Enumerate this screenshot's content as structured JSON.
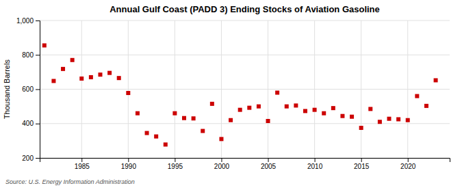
{
  "chart_data": {
    "type": "scatter",
    "title": "Annual Gulf Coast (PADD 3) Ending Stocks of Aviation Gasoline",
    "ylabel": "Thousand Barrels",
    "annotations": [
      "Source: U.S. Energy Information Administration"
    ],
    "x": [
      1981,
      1982,
      1983,
      1984,
      1985,
      1986,
      1987,
      1988,
      1989,
      1990,
      1991,
      1992,
      1993,
      1994,
      1995,
      1996,
      1997,
      1998,
      1999,
      2000,
      2001,
      2002,
      2003,
      2004,
      2005,
      2006,
      2007,
      2008,
      2009,
      2010,
      2011,
      2012,
      2013,
      2014,
      2015,
      2016,
      2017,
      2018,
      2019,
      2020,
      2021,
      2022,
      2023
    ],
    "values": [
      855,
      648,
      718,
      770,
      662,
      670,
      685,
      695,
      665,
      578,
      460,
      345,
      325,
      278,
      460,
      432,
      430,
      357,
      515,
      310,
      420,
      480,
      492,
      500,
      415,
      580,
      500,
      505,
      473,
      480,
      460,
      490,
      444,
      440,
      375,
      485,
      410,
      428,
      425,
      420,
      560,
      503,
      652
    ],
    "color": "#cc0000",
    "marker": "square",
    "xlim": [
      1980.5,
      2024.5
    ],
    "xticks": [
      1985,
      1990,
      1995,
      2000,
      2005,
      2010,
      2015,
      2020
    ],
    "ylim": [
      200,
      1000
    ],
    "yticks": [
      200,
      400,
      600,
      800,
      {
        "value": 1000,
        "label": "1,000"
      }
    ],
    "grid": true
  }
}
